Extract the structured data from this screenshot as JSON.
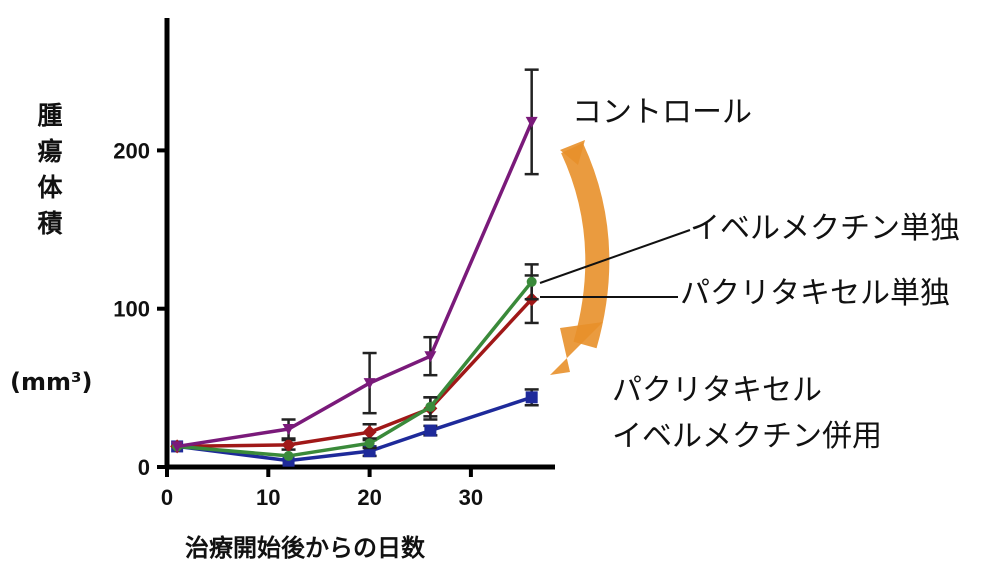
{
  "chart_data": {
    "type": "line",
    "xlabel": "治療開始後からの日数",
    "ylabel": "腫瘍体積",
    "yunit": "(mm³)",
    "xlim": [
      0,
      38
    ],
    "ylim": [
      0,
      280
    ],
    "xticks": [
      "0",
      "10",
      "20",
      "30"
    ],
    "yticks": [
      "0",
      "100",
      "200"
    ],
    "grid": false,
    "series": [
      {
        "name": "コントロール",
        "color": "#7a1a7a",
        "marker": "triangle-down",
        "x": [
          1,
          12,
          20,
          26,
          36
        ],
        "y": [
          13,
          24,
          53,
          70,
          218
        ],
        "err": [
          2,
          6,
          19,
          12,
          33
        ]
      },
      {
        "name": "イベルメクチン単独",
        "color": "#3a8a3a",
        "marker": "circle",
        "x": [
          1,
          12,
          20,
          26,
          36
        ],
        "y": [
          13,
          7,
          15,
          38,
          117
        ],
        "err": [
          2,
          2,
          3,
          6,
          11
        ]
      },
      {
        "name": "パクリタキセル単独",
        "color": "#a01818",
        "marker": "diamond",
        "x": [
          1,
          12,
          20,
          26,
          36
        ],
        "y": [
          13,
          14,
          22,
          37,
          106
        ],
        "err": [
          2,
          3,
          5,
          7,
          15
        ]
      },
      {
        "name": "パクリタキセル イベルメクチン併用",
        "color": "#1e2a9a",
        "marker": "square",
        "x": [
          1,
          12,
          20,
          26,
          36
        ],
        "y": [
          13,
          4,
          10,
          23,
          44
        ],
        "err": [
          2,
          2,
          3,
          3,
          5
        ]
      }
    ],
    "annotations": {
      "control": "コントロール",
      "ivermectin": "イベルメクチン単独",
      "paclitaxel": "パクリタキセル単独",
      "combo_line1": "パクリタキセル",
      "combo_line2": "イベルメクチン併用",
      "arrow_color": "#e8902a"
    }
  }
}
